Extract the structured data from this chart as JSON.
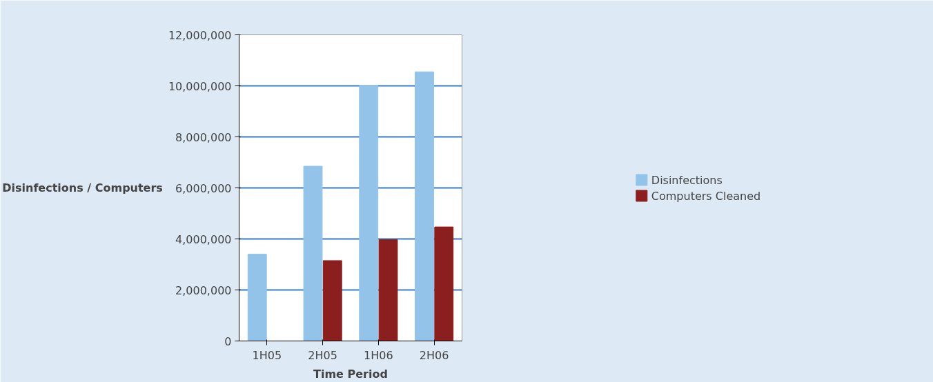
{
  "chart_data": {
    "type": "bar",
    "xlabel": "Time Period",
    "ylabel": "Disinfections / Computers",
    "categories": [
      "1H05",
      "2H05",
      "1H06",
      "2H06"
    ],
    "series": [
      {
        "name": "Disinfections",
        "color": "#93c3e8",
        "values": [
          3400000,
          6850000,
          10000000,
          10550000
        ]
      },
      {
        "name": "Computers Cleaned",
        "color": "#8b1e1e",
        "values": [
          null,
          3150000,
          3970000,
          4470000
        ]
      }
    ],
    "ylim": [
      0,
      12000000
    ],
    "yticks": [
      0,
      {
        "value": 2000000,
        "label": "2,000,000"
      },
      {
        "value": 4000000,
        "label": "4,000,000"
      },
      {
        "value": 6000000,
        "label": "6,000,000"
      },
      {
        "value": 8000000,
        "label": "8,000,000"
      },
      {
        "value": 10000000,
        "label": "10,000,000"
      },
      {
        "value": 12000000,
        "label": "12,000,000"
      }
    ],
    "grid": "y",
    "legend": "right"
  }
}
